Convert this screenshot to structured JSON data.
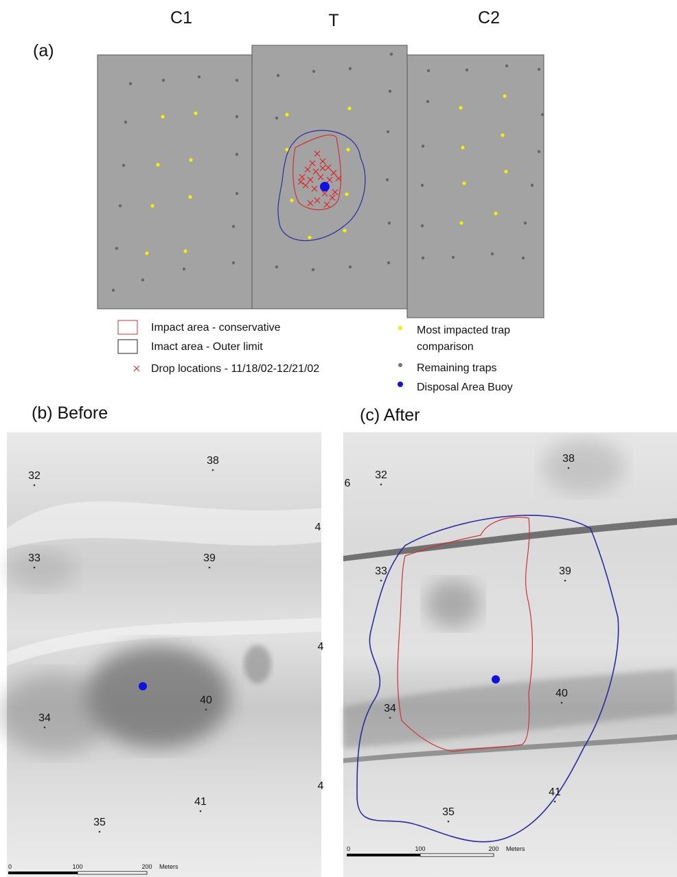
{
  "panel_a": {
    "label": "(a)",
    "columns": [
      "C1",
      "T",
      "C2"
    ],
    "legend": {
      "conservative": "Impact area - conservative",
      "outer": "Imact area - Outer limit",
      "drops": "Drop locations - 11/18/02-12/21/02",
      "impacted": [
        "Most impacted trap",
        "comparison"
      ],
      "remaining": "Remaining traps",
      "buoy": "Disposal Area Buoy"
    }
  },
  "panel_b": {
    "label": "(b) Before",
    "traps": [
      "32",
      "38",
      "33",
      "39",
      "40",
      "34",
      "41",
      "35",
      "4",
      "4",
      "4"
    ],
    "scale": [
      "0",
      "100",
      "200",
      "Meters"
    ]
  },
  "panel_c": {
    "label": "(c) After",
    "traps": [
      "6",
      "32",
      "38",
      "33",
      "39",
      "40",
      "34",
      "41",
      "35"
    ],
    "scale": [
      "0",
      "100",
      "200",
      "Meters"
    ]
  }
}
